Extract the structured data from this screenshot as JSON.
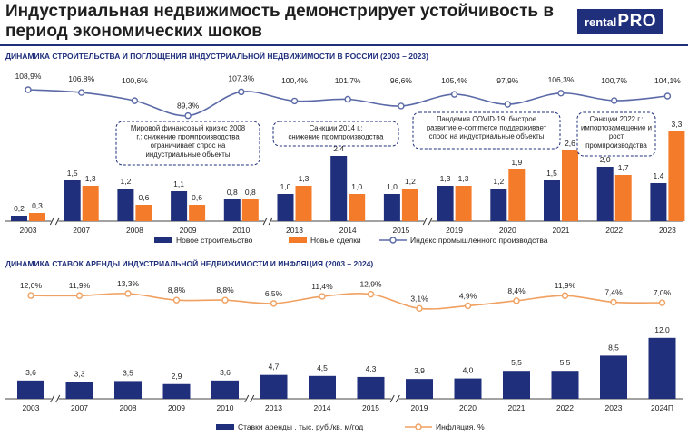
{
  "page": {
    "title": "Индустриальная недвижимость демонстрирует устойчивость в период экономических шоков",
    "logo_prefix": "rental",
    "logo_main": "PRO",
    "colors": {
      "navy": "#1f2f7c",
      "orange": "#f47b2a",
      "line_blue": "#5b6aa7",
      "line_orange": "#f0a060"
    }
  },
  "chart_data": [
    {
      "type": "bar",
      "title": "ДИНАМИКА СТРОИТЕЛЬСТВА И ПОГЛОЩЕНИЯ ИНДУСТРИАЛЬНОЙ НЕДВИЖИМОСТИ В РОССИИ (2003 – 2023)",
      "categories": [
        "2003",
        "2007",
        "2008",
        "2009",
        "2010",
        "2013",
        "2014",
        "2015",
        "2019",
        "2020",
        "2021",
        "2022",
        "2023"
      ],
      "series": [
        {
          "name": "Новое строительство",
          "color": "#1f2f7c",
          "values": [
            0.2,
            1.5,
            1.2,
            1.1,
            0.8,
            1.0,
            2.4,
            1.0,
            1.3,
            1.2,
            1.5,
            2.0,
            1.4
          ]
        },
        {
          "name": "Новые сделки",
          "color": "#f47b2a",
          "values": [
            0.3,
            1.3,
            0.6,
            0.6,
            0.8,
            1.3,
            1.0,
            1.2,
            1.3,
            1.9,
            2.6,
            1.7,
            3.3
          ]
        }
      ],
      "line_series": {
        "name": "Индекс промышленного производства",
        "labels": [
          "108,9%",
          "106,8%",
          "100,6%",
          "89,3%",
          "107,3%",
          "100,4%",
          "101,7%",
          "96,6%",
          "105,4%",
          "97,9%",
          "106,3%",
          "100,7%",
          "104,1%"
        ],
        "values": [
          108.9,
          106.8,
          100.6,
          89.3,
          107.3,
          100.4,
          101.7,
          96.6,
          105.4,
          97.9,
          106.3,
          100.7,
          104.1
        ]
      },
      "bar_labels_navy": [
        "0,2",
        "1,5",
        "1,2",
        "1,1",
        "0,8",
        "1,0",
        "2,4",
        "1,0",
        "1,3",
        "1,2",
        "1,5",
        "2,0",
        "1,4"
      ],
      "bar_labels_orange": [
        "0,3",
        "1,3",
        "0,6",
        "0,6",
        "0,8",
        "1,3",
        "1,0",
        "1,2",
        "1,3",
        "1,9",
        "2,6",
        "1,7",
        "3,3"
      ],
      "annotations": [
        "Мировой финансовый кризис 2008 г.: снижение промпроизводства ограничивает спрос на индустриальные объекты",
        "Санкции 2014 г.: снижение промпроизводства",
        "Пандемия COVID-19: быстрое развитие e-commerce поддерживает спрос на индустриальные объекты",
        "Санкции 2022 г.: импортозамещение и рост промпроизводства"
      ]
    },
    {
      "type": "bar",
      "title": "ДИНАМИКА СТАВОК АРЕНДЫ ИНДУСТРИАЛЬНОЙ НЕДВИЖИМОСТИ И ИНФЛЯЦИЯ (2003 – 2024)",
      "categories": [
        "2003",
        "2007",
        "2008",
        "2009",
        "2010",
        "2013",
        "2014",
        "2015",
        "2019",
        "2020",
        "2021",
        "2022",
        "2023",
        "2024П"
      ],
      "series": [
        {
          "name": "Ставки аренды , тыс. руб./кв. м/год",
          "color": "#1f2f7c",
          "values": [
            3.6,
            3.3,
            3.5,
            2.9,
            3.6,
            4.7,
            4.5,
            4.3,
            3.9,
            4.0,
            5.5,
            5.5,
            8.5,
            12.0
          ]
        }
      ],
      "bar_labels": [
        "3,6",
        "3,3",
        "3,5",
        "2,9",
        "3,6",
        "4,7",
        "4,5",
        "4,3",
        "3,9",
        "4,0",
        "5,5",
        "5,5",
        "8,5",
        "12,0"
      ],
      "line_series": {
        "name": "Инфляция,  %",
        "labels": [
          "12,0%",
          "11,9%",
          "13,3%",
          "8,8%",
          "8,8%",
          "6,5%",
          "11,4%",
          "12,9%",
          "3,1%",
          "4,9%",
          "8,4%",
          "11,9%",
          "7,4%",
          "7,0%"
        ],
        "values": [
          12.0,
          11.9,
          13.3,
          8.8,
          8.8,
          6.5,
          11.4,
          12.9,
          3.1,
          4.9,
          8.4,
          11.9,
          7.4,
          7.0
        ]
      }
    }
  ]
}
